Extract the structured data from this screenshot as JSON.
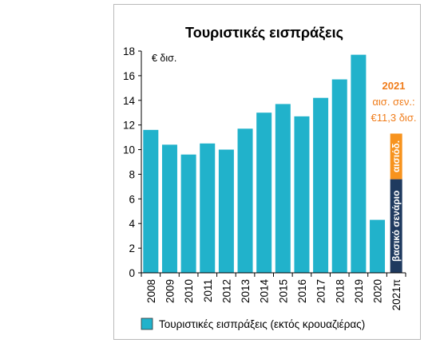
{
  "chart_data": {
    "type": "bar",
    "title": "Τουριστικές εισπράξεις",
    "unit_label": "€ δισ.",
    "categories": [
      "2008",
      "2009",
      "2010",
      "2011",
      "2012",
      "2013",
      "2014",
      "2015",
      "2016",
      "2017",
      "2018",
      "2019",
      "2020",
      "2021π"
    ],
    "series": [
      {
        "name": "Τουριστικές εισπράξεις (εκτός κρουαζιέρας)",
        "values": [
          11.6,
          10.4,
          9.6,
          10.5,
          10.0,
          11.7,
          13.0,
          13.7,
          12.7,
          14.2,
          15.7,
          17.7,
          4.3,
          null
        ]
      }
    ],
    "ylim": [
      0,
      18
    ],
    "yticks": [
      0,
      2,
      4,
      6,
      8,
      10,
      12,
      14,
      16,
      18
    ],
    "grid": false,
    "legend_position": "bottom",
    "stacked_2021": [
      {
        "label": "βασικό σενάριο",
        "value": 7.6,
        "color": "#1f3a5f"
      },
      {
        "label": "αισιόδ.",
        "value": 3.7,
        "color": "#f7931e"
      }
    ],
    "annotation": {
      "line1": "2021",
      "line2": "αισ. σεν.:",
      "line3": "€11,3 δισ."
    },
    "colors": {
      "bars": "#21b2cb",
      "base": "#1f3a5f",
      "optimistic": "#f7931e",
      "annotation": "#f07c1a"
    }
  }
}
